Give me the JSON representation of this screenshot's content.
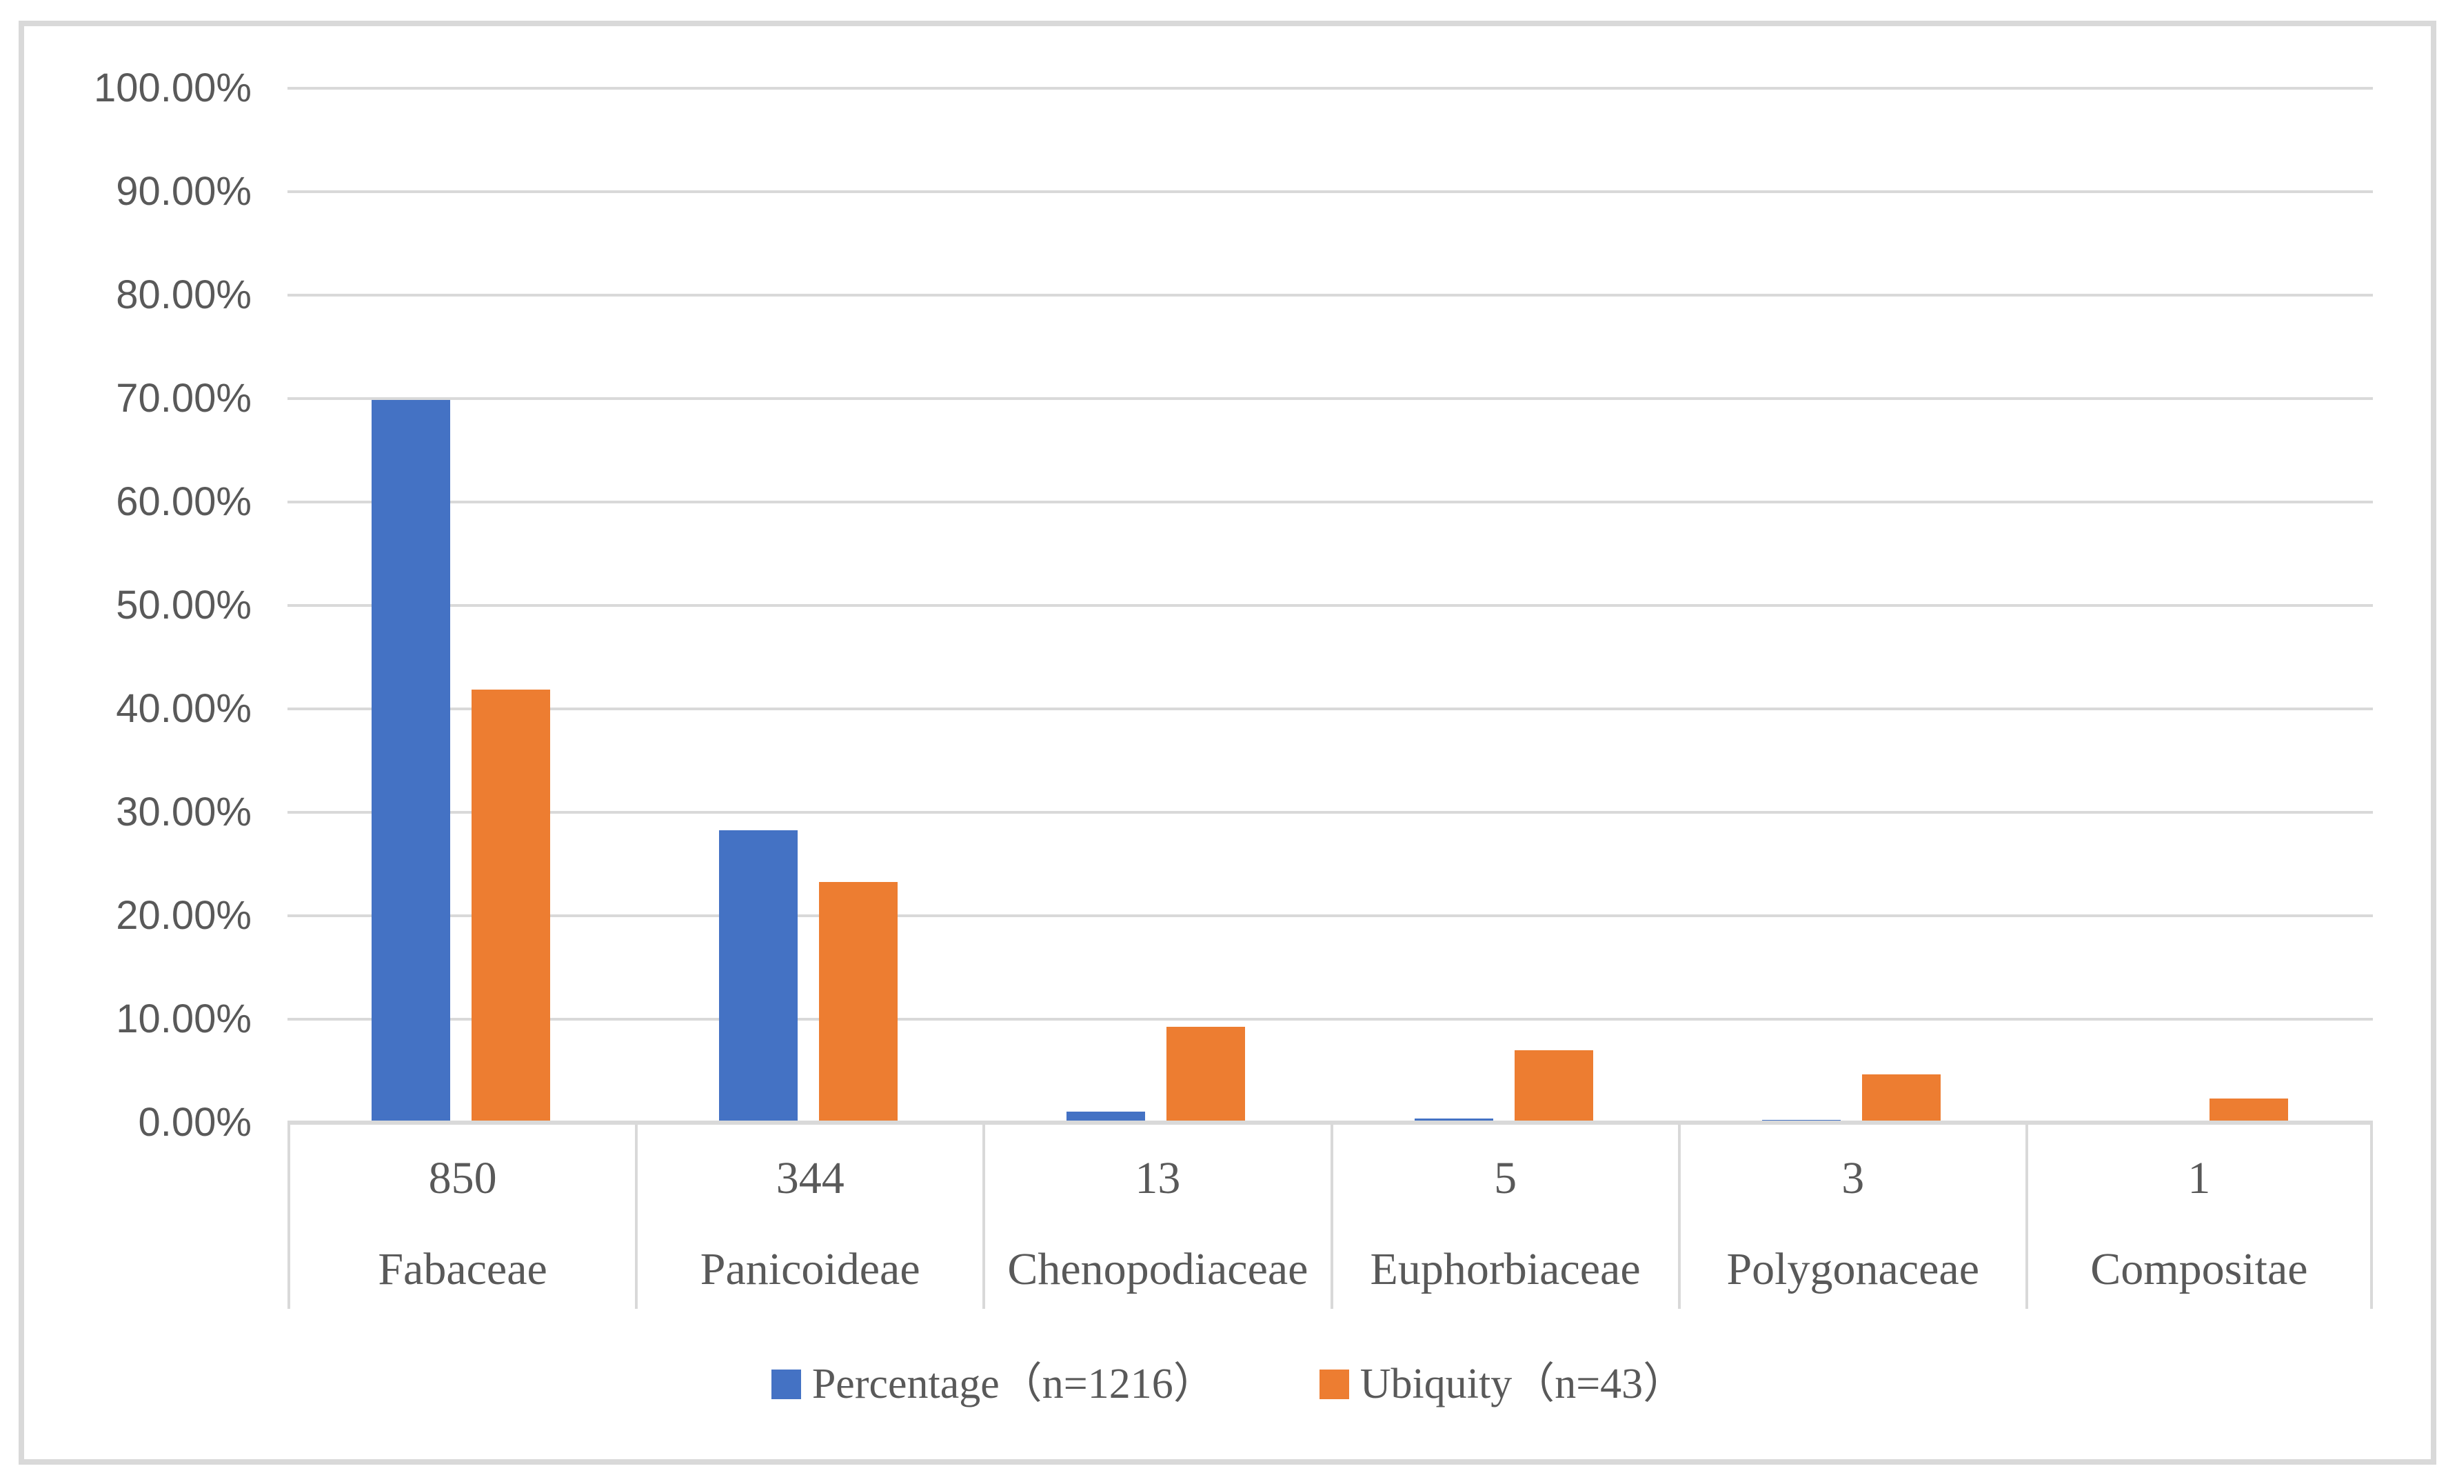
{
  "window": {
    "background": "#ffffff",
    "frame_border_color": "#d9d9d9"
  },
  "chart_data": {
    "type": "bar",
    "title": "",
    "categories": [
      "Fabaceae",
      "Panicoideae",
      "Chenopodiaceae",
      "Euphorbiaceae",
      "Polygonaceae",
      "Compositae"
    ],
    "category_counts": [
      "850",
      "344",
      "13",
      "5",
      "3",
      "1"
    ],
    "series": [
      {
        "name": "Percentage（n=1216）",
        "color": "#4472C4",
        "values": [
          69.9,
          28.29,
          1.07,
          0.41,
          0.25,
          0.08
        ]
      },
      {
        "name": "Ubiquity（n=43）",
        "color": "#ED7D31",
        "values": [
          41.86,
          23.26,
          9.3,
          6.98,
          4.65,
          2.33
        ]
      }
    ],
    "y_axis": {
      "min": 0,
      "max": 100,
      "tick_step": 10,
      "tick_labels": [
        "0.00%",
        "10.00%",
        "20.00%",
        "30.00%",
        "40.00%",
        "50.00%",
        "60.00%",
        "70.00%",
        "80.00%",
        "90.00%",
        "100.00%"
      ],
      "grid": true
    },
    "legend_position": "bottom",
    "text_color": "#595959",
    "gridline_color": "#d9d9d9"
  }
}
